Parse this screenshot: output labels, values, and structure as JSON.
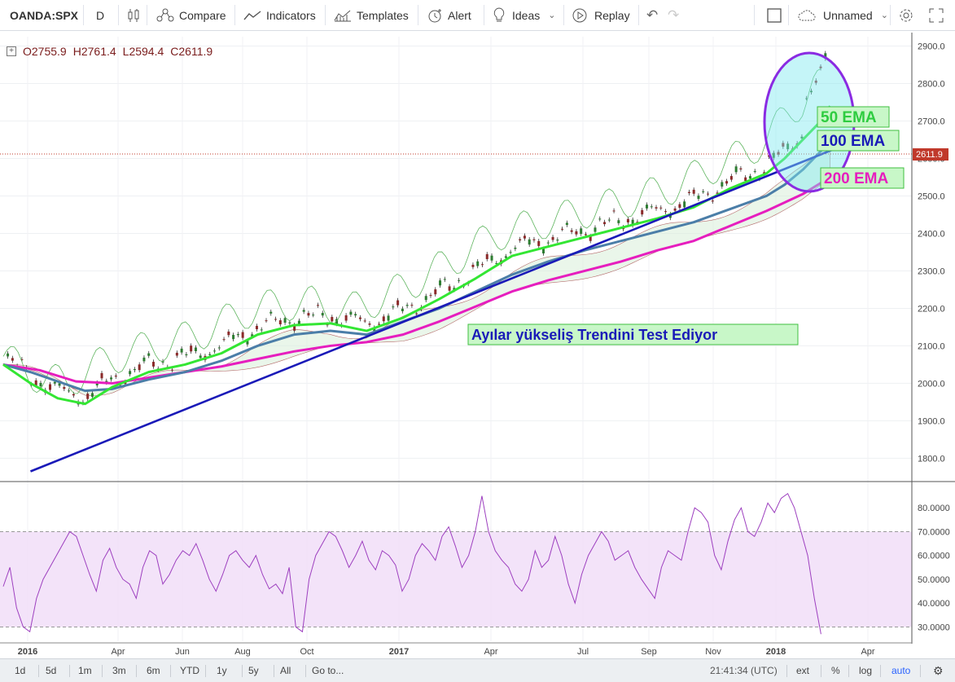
{
  "toolbar": {
    "symbol": "OANDA:SPX",
    "interval": "D",
    "compare": "Compare",
    "indicators": "Indicators",
    "templates": "Templates",
    "alert": "Alert",
    "ideas": "Ideas",
    "replay": "Replay",
    "layout_name": "Unnamed"
  },
  "ohlc": {
    "open": "O2755.9",
    "high": "H2761.4",
    "low": "L2594.4",
    "close": "C2611.9"
  },
  "chart_data": [
    {
      "type": "line",
      "title": "",
      "x_labels": [
        "2016",
        "Apr",
        "Jun",
        "Aug",
        "Oct",
        "2017",
        "Apr",
        "Jul",
        "Sep",
        "Nov",
        "2018",
        "Apr"
      ],
      "price_axis_ticks": [
        "2900.0",
        "2800.0",
        "2700.0",
        "2600.0",
        "2500.0",
        "2400.0",
        "2300.0",
        "2200.0",
        "2100.0",
        "2000.0",
        "1900.0",
        "1800.0"
      ],
      "ylim": [
        1740,
        2925
      ],
      "last_price": "2611.9",
      "series": [
        {
          "name": "50 EMA",
          "color": "#33e633",
          "points": [
            [
              0,
              2050
            ],
            [
              0.03,
              2000
            ],
            [
              0.06,
              1960
            ],
            [
              0.09,
              1945
            ],
            [
              0.12,
              1990
            ],
            [
              0.16,
              2030
            ],
            [
              0.2,
              2050
            ],
            [
              0.24,
              2080
            ],
            [
              0.28,
              2130
            ],
            [
              0.32,
              2155
            ],
            [
              0.36,
              2160
            ],
            [
              0.4,
              2140
            ],
            [
              0.44,
              2175
            ],
            [
              0.48,
              2225
            ],
            [
              0.52,
              2280
            ],
            [
              0.56,
              2340
            ],
            [
              0.6,
              2365
            ],
            [
              0.64,
              2390
            ],
            [
              0.68,
              2415
            ],
            [
              0.72,
              2440
            ],
            [
              0.76,
              2470
            ],
            [
              0.8,
              2520
            ],
            [
              0.84,
              2560
            ],
            [
              0.86,
              2600
            ],
            [
              0.88,
              2650
            ],
            [
              0.9,
              2700
            ],
            [
              0.91,
              2740
            ]
          ]
        },
        {
          "name": "100 EMA",
          "color": "#4b7ea8",
          "points": [
            [
              0,
              2050
            ],
            [
              0.03,
              2030
            ],
            [
              0.06,
              2005
            ],
            [
              0.09,
              1980
            ],
            [
              0.12,
              1985
            ],
            [
              0.16,
              2010
            ],
            [
              0.2,
              2030
            ],
            [
              0.24,
              2060
            ],
            [
              0.28,
              2100
            ],
            [
              0.32,
              2130
            ],
            [
              0.36,
              2140
            ],
            [
              0.4,
              2130
            ],
            [
              0.44,
              2165
            ],
            [
              0.48,
              2200
            ],
            [
              0.52,
              2245
            ],
            [
              0.56,
              2290
            ],
            [
              0.6,
              2325
            ],
            [
              0.64,
              2355
            ],
            [
              0.68,
              2380
            ],
            [
              0.72,
              2405
            ],
            [
              0.76,
              2430
            ],
            [
              0.8,
              2465
            ],
            [
              0.84,
              2500
            ],
            [
              0.86,
              2530
            ],
            [
              0.88,
              2570
            ],
            [
              0.9,
              2620
            ],
            [
              0.91,
              2660
            ]
          ]
        },
        {
          "name": "200 EMA",
          "color": "#e61ebe",
          "points": [
            [
              0,
              2050
            ],
            [
              0.04,
              2035
            ],
            [
              0.08,
              2005
            ],
            [
              0.12,
              2000
            ],
            [
              0.16,
              2015
            ],
            [
              0.2,
              2030
            ],
            [
              0.24,
              2045
            ],
            [
              0.28,
              2065
            ],
            [
              0.32,
              2085
            ],
            [
              0.36,
              2100
            ],
            [
              0.4,
              2110
            ],
            [
              0.44,
              2130
            ],
            [
              0.48,
              2165
            ],
            [
              0.52,
              2205
            ],
            [
              0.56,
              2245
            ],
            [
              0.6,
              2275
            ],
            [
              0.64,
              2300
            ],
            [
              0.68,
              2325
            ],
            [
              0.72,
              2355
            ],
            [
              0.76,
              2380
            ],
            [
              0.8,
              2420
            ],
            [
              0.84,
              2460
            ],
            [
              0.88,
              2505
            ],
            [
              0.9,
              2535
            ],
            [
              0.91,
              2555
            ]
          ]
        },
        {
          "name": "Trendline",
          "color": "#1a1ab8",
          "points": [
            [
              0.03,
              1765
            ],
            [
              0.93,
              2640
            ]
          ]
        }
      ],
      "annotations": [
        "50 EMA",
        "100 EMA",
        "200 EMA",
        "Ayılar yükseliş Trendini Test Ediyor"
      ]
    },
    {
      "type": "line",
      "title": "",
      "ylim": [
        24,
        90
      ],
      "band": [
        30,
        70
      ],
      "price_axis_ticks": [
        "80.0000",
        "70.0000",
        "60.0000",
        "50.0000",
        "40.0000",
        "30.0000"
      ],
      "series": [
        {
          "name": "",
          "color": "#9d3fbf",
          "values": [
            47,
            55,
            38,
            30,
            28,
            42,
            50,
            55,
            60,
            65,
            70,
            68,
            60,
            52,
            45,
            58,
            63,
            55,
            50,
            48,
            42,
            55,
            62,
            60,
            48,
            52,
            58,
            62,
            60,
            65,
            58,
            50,
            45,
            52,
            60,
            62,
            58,
            55,
            60,
            52,
            46,
            48,
            44,
            55,
            30,
            28,
            50,
            60,
            65,
            70,
            68,
            62,
            55,
            60,
            66,
            58,
            54,
            62,
            60,
            56,
            45,
            50,
            60,
            65,
            62,
            58,
            68,
            72,
            64,
            55,
            60,
            70,
            85,
            70,
            62,
            58,
            55,
            48,
            45,
            50,
            62,
            55,
            58,
            68,
            60,
            48,
            40,
            52,
            60,
            65,
            70,
            66,
            58,
            60,
            62,
            55,
            50,
            46,
            42,
            55,
            62,
            60,
            58,
            70,
            80,
            78,
            74,
            60,
            54,
            66,
            75,
            80,
            70,
            68,
            74,
            82,
            78,
            84,
            86,
            80,
            70,
            60,
            42,
            27
          ]
        }
      ]
    }
  ],
  "bottom_bar": {
    "ranges": [
      "1d",
      "5d",
      "1m",
      "3m",
      "6m",
      "YTD",
      "1y",
      "5y",
      "All"
    ],
    "goto": "Go to...",
    "time": "21:41:34 (UTC)",
    "ext": "ext",
    "percent": "%",
    "log": "log",
    "auto": "auto"
  }
}
